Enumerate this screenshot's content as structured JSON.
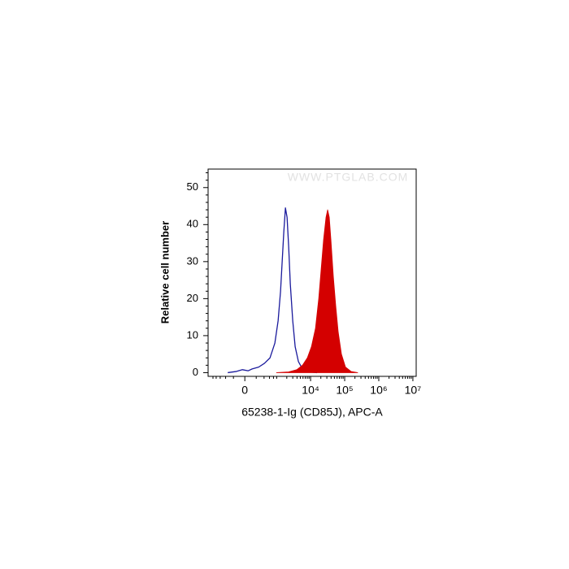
{
  "chart_data": {
    "type": "histogram-overlay",
    "watermark": "WWW.PTGLAB.COM",
    "xlabel": "65238-1-Ig (CD85J), APC-A",
    "ylabel": "Relative cell number",
    "xscale": "asinh",
    "asinh_width": 236,
    "xlim": [
      -1400,
      12500000
    ],
    "ylim": [
      -1,
      55
    ],
    "xticks": [
      0,
      {
        "value": 10000,
        "label": "10⁴"
      },
      {
        "value": 100000,
        "label": "10⁵"
      },
      {
        "value": 1000000,
        "label": "10⁶"
      },
      {
        "value": 10000000,
        "label": "10⁷"
      }
    ],
    "xminor": [
      -1000,
      -800,
      -600,
      -400,
      -200,
      200,
      400,
      600,
      800,
      1000,
      2000,
      3000,
      4000,
      5000,
      6000,
      7000,
      8000,
      9000,
      20000,
      30000,
      40000,
      50000,
      60000,
      70000,
      80000,
      90000,
      200000,
      300000,
      400000,
      500000,
      600000,
      700000,
      800000,
      900000,
      2000000,
      3000000,
      4000000,
      5000000,
      6000000,
      7000000,
      8000000,
      9000000
    ],
    "yticks": [
      0,
      10,
      20,
      30,
      40,
      50
    ],
    "yminor": [
      2,
      4,
      6,
      8,
      12,
      14,
      16,
      18,
      22,
      24,
      26,
      28,
      32,
      34,
      36,
      38,
      42,
      44,
      46,
      48,
      52,
      54
    ],
    "series": [
      {
        "color": "#1a1a9c",
        "filled": false,
        "x": [
          -336,
          -151,
          -39,
          52,
          121,
          253,
          409,
          625,
          882,
          1104,
          1306,
          1460,
          1631,
          1822,
          2037,
          2273,
          2537,
          2995,
          3528,
          4394,
          5782,
          8968,
          15505
        ],
        "values": [
          0,
          0.3,
          0.8,
          0.5,
          1,
          1.5,
          2.5,
          4,
          8,
          14,
          22,
          30,
          38,
          44.5,
          42,
          34,
          24,
          14,
          7,
          3,
          1,
          0.2,
          0
        ]
      },
      {
        "color": "#d40000",
        "filled": true,
        "x": [
          989,
          2273,
          3936,
          5782,
          8030,
          10580,
          13920,
          17330,
          20430,
          24080,
          28370,
          31650,
          35330,
          39420,
          46470,
          54780,
          64570,
          80410,
          105750,
          155260,
          240900
        ],
        "values": [
          0,
          0.2,
          0.8,
          2,
          4,
          7,
          12,
          20,
          28,
          36,
          42,
          44,
          42,
          36,
          26,
          18,
          11,
          5,
          1.5,
          0.3,
          0
        ]
      }
    ]
  }
}
